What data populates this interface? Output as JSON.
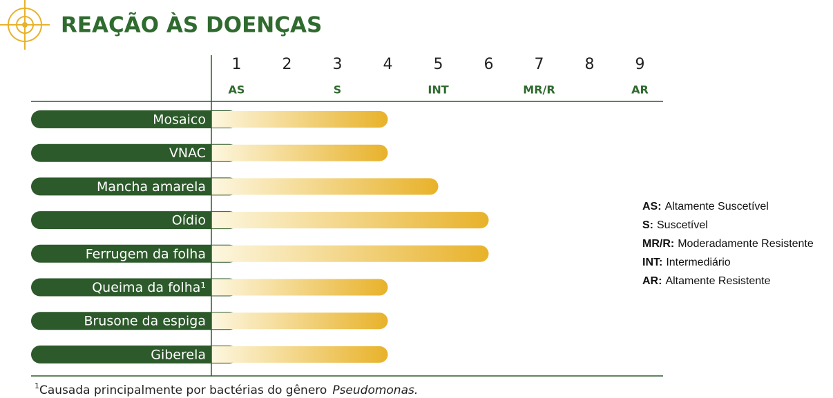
{
  "chart_data": {
    "type": "bar",
    "orientation": "horizontal",
    "title": "REAÇÃO ÀS DOENÇAS",
    "categories": [
      "Mosaico",
      "VNAC",
      "Mancha amarela",
      "Oídio",
      "Ferrugem da folha",
      "Queima da folha¹",
      "Brusone da espiga",
      "Giberela"
    ],
    "values": [
      4,
      4,
      5,
      6,
      6,
      4,
      4,
      4
    ],
    "color": "#e8b22a",
    "label_color": "#2d5a2b",
    "xlim": [
      0.5,
      9.5
    ],
    "xticks": [
      1,
      2,
      3,
      4,
      5,
      6,
      7,
      8,
      9
    ],
    "scale_labels": [
      {
        "value": 1,
        "label": "AS"
      },
      {
        "value": 3,
        "label": "S"
      },
      {
        "value": 5,
        "label": "INT"
      },
      {
        "value": 7,
        "label": "MR/R"
      },
      {
        "value": 9,
        "label": "AR"
      }
    ],
    "glossary": [
      {
        "term": "AS:",
        "text": "Altamente Suscetível"
      },
      {
        "term": "S:",
        "text": "Suscetível"
      },
      {
        "term": "MR/R:",
        "text": "Moderadamente Resistente"
      },
      {
        "term": "INT:",
        "text": "Intermediário"
      },
      {
        "term": "AR:",
        "text": "Altamente Resistente"
      }
    ],
    "footnote": {
      "marker": "1",
      "text": "Causada principalmente por bactérias do gênero",
      "italic": "Pseudomonas."
    }
  }
}
